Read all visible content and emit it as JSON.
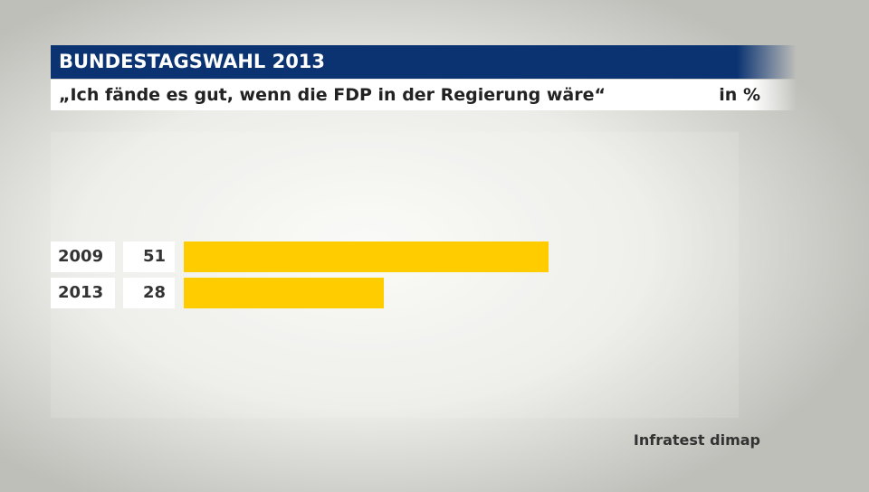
{
  "header": {
    "title": "BUNDESTAGSWAHL 2013",
    "subtitle": "„Ich fände es gut, wenn die FDP in der Regierung wäre“",
    "unit": "in %"
  },
  "source": "Infratest dimap",
  "chart_data": {
    "type": "bar",
    "orientation": "horizontal",
    "title": "BUNDESTAGSWAHL 2013",
    "subtitle": "„Ich fände es gut, wenn die FDP in der Regierung wäre“",
    "unit": "in %",
    "categories": [
      "2009",
      "2013"
    ],
    "values": [
      51,
      28
    ],
    "labels": [
      "51",
      "28"
    ],
    "bar_color": "#ffcc00",
    "header_color": "#0b3372",
    "grid": false
  }
}
